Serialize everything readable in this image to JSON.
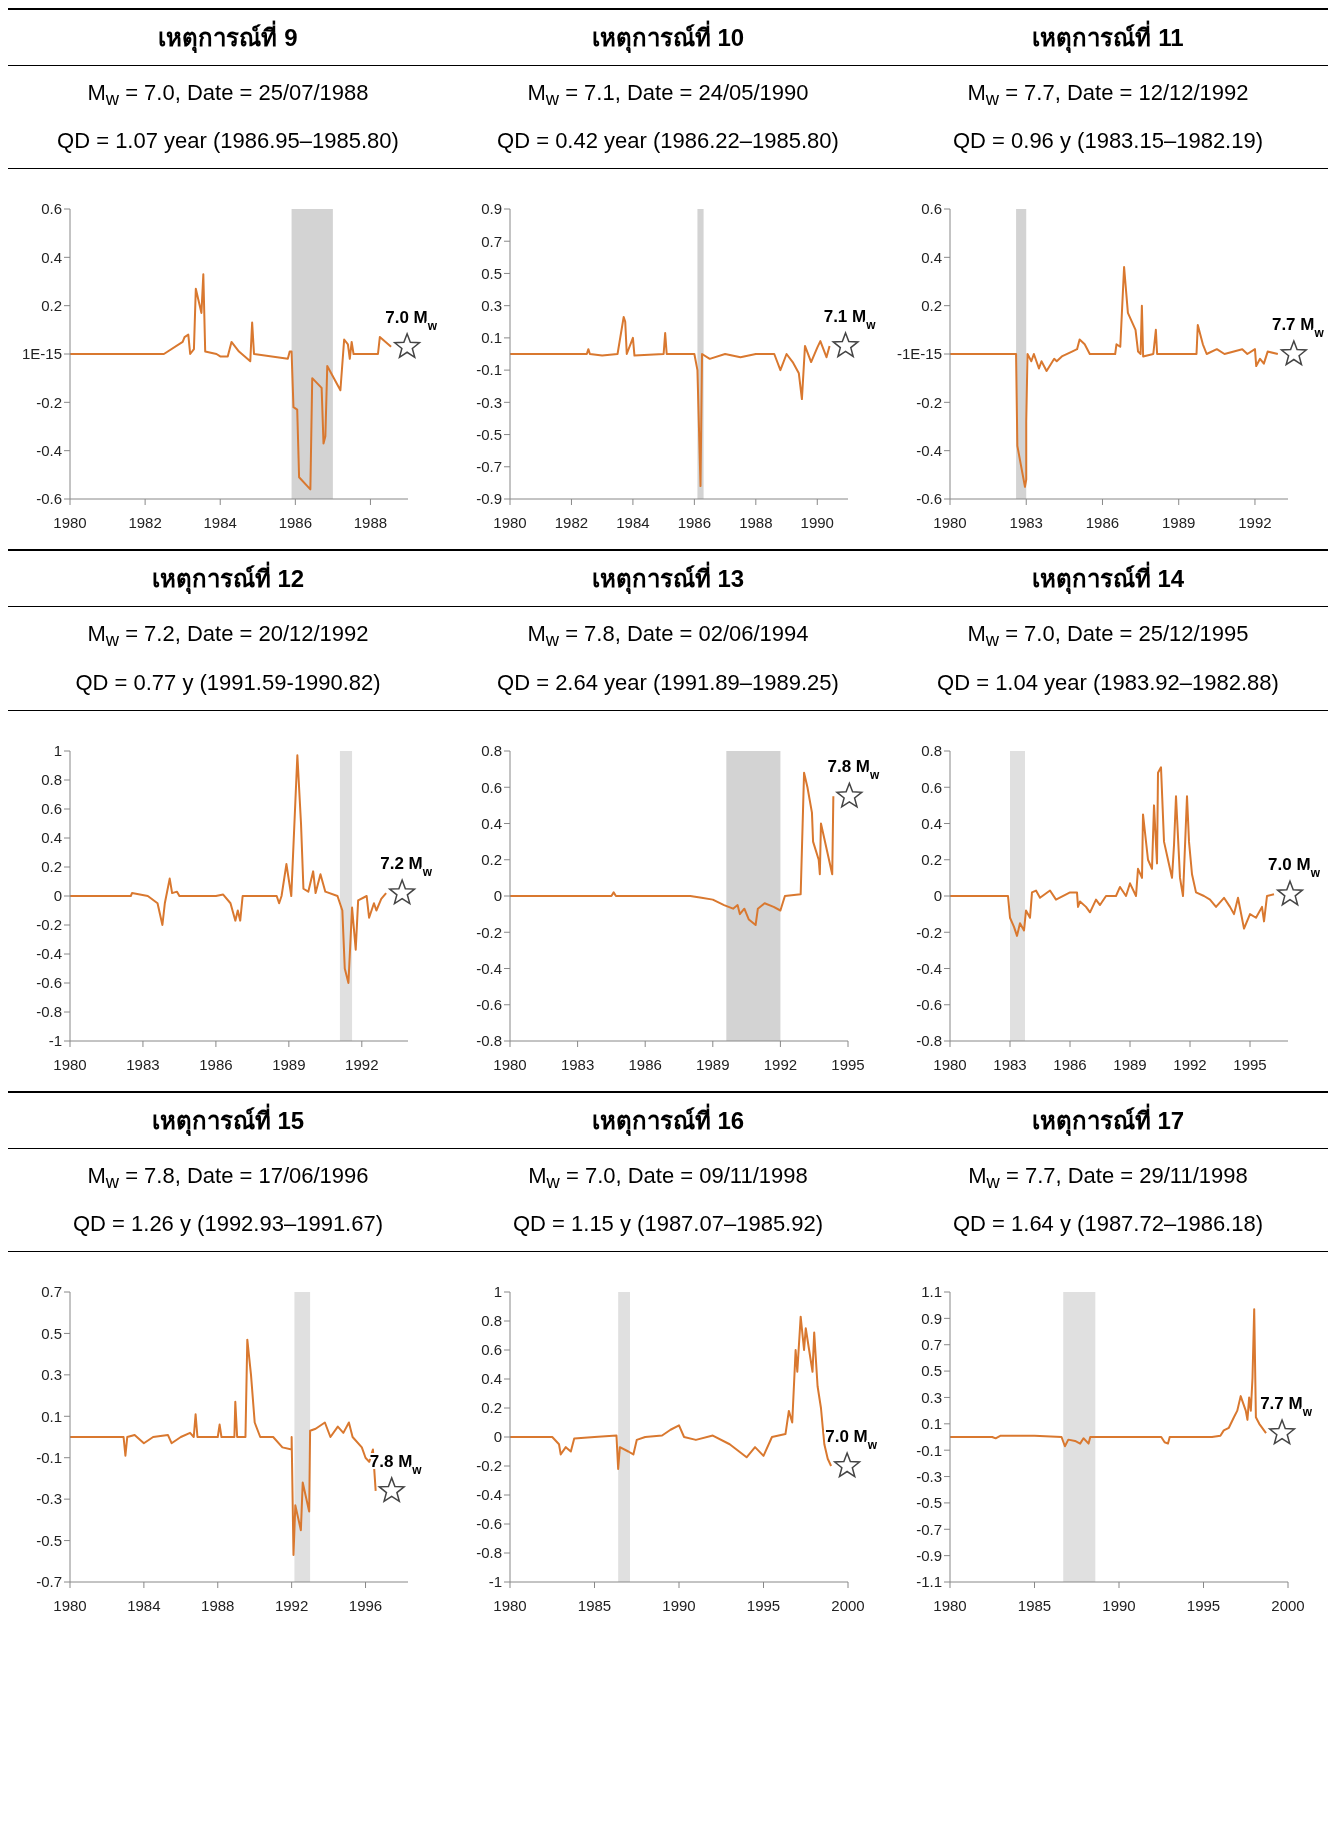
{
  "chart_data": [
    {
      "type": "line",
      "title": "เหตุการณ์ที่ 9",
      "subtitle": "M$_{w}$ = 7.0, Date = 25/07/1988\nQD = 1.07 year (1986.95–1985.80)",
      "x": [
        1980,
        1982.5,
        1983.0,
        1983.05,
        1983.15,
        1983.2,
        1983.3,
        1983.35,
        1983.5,
        1983.55,
        1983.6,
        1983.9,
        1984.0,
        1984.2,
        1984.3,
        1984.5,
        1984.8,
        1984.85,
        1984.9,
        1985.8,
        1985.85,
        1985.9,
        1985.95,
        1986.05,
        1986.1,
        1986.4,
        1986.45,
        1986.7,
        1986.75,
        1986.8,
        1986.85,
        1987.2,
        1987.3,
        1987.4,
        1987.45,
        1987.5,
        1987.55,
        1988.2,
        1988.25,
        1988.55
      ],
      "series": [
        {
          "color": "#d9782f",
          "values": [
            0,
            0,
            0.05,
            0.07,
            0.08,
            0,
            0.02,
            0.27,
            0.17,
            0.33,
            0.01,
            0,
            -0.01,
            -0.01,
            0.05,
            0.01,
            -0.03,
            0.13,
            0,
            -0.02,
            0.01,
            0.01,
            -0.22,
            -0.23,
            -0.51,
            -0.56,
            -0.1,
            -0.14,
            -0.37,
            -0.34,
            -0.05,
            -0.15,
            0.06,
            0.04,
            -0.02,
            0.05,
            0,
            0,
            0.07,
            0.03
          ]
        }
      ],
      "xlim": [
        1980,
        1989
      ],
      "xticks": [
        1980,
        1982,
        1984,
        1986,
        1988
      ],
      "ylim": [
        -0.6,
        0.6
      ],
      "yticks": [
        -0.6,
        -0.4,
        -0.2,
        {
          "value": 0,
          "label": "1E-15"
        },
        0.2,
        0.4,
        0.6
      ],
      "bands": [
        {
          "axis": "x",
          "from": 1985.9,
          "to": 1987.0,
          "color": "#d3d3d3"
        }
      ],
      "annotations": [
        {
          "text": "7.0 M$_{w}$",
          "x": 1988.55,
          "y": 0.03
        }
      ]
    },
    {
      "type": "line",
      "title": "เหตุการณ์ที่ 10",
      "subtitle": "M$_{w}$ = 7.1, Date = 24/05/1990\nQD = 0.42 year (1986.22–1985.80)",
      "x": [
        1980,
        1982.5,
        1982.55,
        1982.6,
        1983,
        1983.5,
        1983.7,
        1983.75,
        1983.8,
        1984,
        1984.05,
        1985,
        1985.05,
        1985.1,
        1986.0,
        1986.1,
        1986.2,
        1986.25,
        1986.5,
        1987,
        1987.5,
        1988,
        1988.6,
        1988.8,
        1989,
        1989.2,
        1989.4,
        1989.5,
        1989.6,
        1989.8,
        1990,
        1990.1,
        1990.3,
        1990.4
      ],
      "series": [
        {
          "color": "#d9782f",
          "values": [
            0,
            0,
            0.03,
            0,
            -0.01,
            0,
            0.23,
            0.2,
            0,
            0.1,
            -0.01,
            0,
            0.13,
            0,
            0,
            -0.1,
            -0.82,
            0,
            -0.03,
            0,
            -0.02,
            0,
            0,
            -0.1,
            0,
            -0.05,
            -0.12,
            -0.28,
            0.05,
            -0.05,
            0.04,
            0.08,
            -0.02,
            0.05
          ]
        }
      ],
      "xlim": [
        1980,
        1991
      ],
      "xticks": [
        1980,
        1982,
        1984,
        1986,
        1988,
        1990
      ],
      "ylim": [
        -0.9,
        0.9
      ],
      "yticks": [
        -0.9,
        -0.7,
        -0.5,
        -0.3,
        -0.1,
        0.1,
        0.3,
        0.5,
        0.7,
        0.9
      ],
      "bands": [
        {
          "axis": "x",
          "from": 1986.1,
          "to": 1986.3,
          "color": "#d3d3d3"
        }
      ],
      "annotations": [
        {
          "text": "7.1 M$_{w}$",
          "x": 1990.4,
          "y": 0.05
        }
      ]
    },
    {
      "type": "line",
      "title": "เหตุการณ์ที่ 11",
      "subtitle": "M$_{w}$ = 7.7, Date = 12/12/1992\nQD = 0.96 y (1983.15–1982.19)",
      "x": [
        1980,
        1982.6,
        1982.65,
        1982.95,
        1983.0,
        1983.0,
        1983.05,
        1983.2,
        1983.3,
        1983.5,
        1983.6,
        1983.8,
        1984.1,
        1984.2,
        1984.4,
        1984.8,
        1985.0,
        1985.1,
        1985.3,
        1985.5,
        1986.5,
        1986.55,
        1986.7,
        1986.85,
        1987.0,
        1987.3,
        1987.4,
        1987.5,
        1987.55,
        1987.6,
        1988.0,
        1988.1,
        1988.15,
        1989.0,
        1989.7,
        1989.75,
        1989.95,
        1990.1,
        1990.5,
        1990.8,
        1991.5,
        1991.7,
        1992.0,
        1992.05,
        1992.2,
        1992.35,
        1992.5,
        1992.9
      ],
      "series": [
        {
          "color": "#d9782f",
          "values": [
            0,
            0,
            -0.38,
            -0.55,
            -0.52,
            -0.28,
            0,
            -0.03,
            0,
            -0.06,
            -0.03,
            -0.07,
            -0.02,
            -0.03,
            -0.01,
            0.01,
            0.02,
            0.06,
            0.04,
            0,
            0,
            0.04,
            0.03,
            0.36,
            0.17,
            0.1,
            0.01,
            0,
            0.2,
            -0.01,
            0,
            0.1,
            0,
            0,
            0,
            0.12,
            0.04,
            0,
            0.02,
            0,
            0.02,
            0,
            0.02,
            -0.05,
            -0.02,
            -0.04,
            0.01,
            0
          ]
        }
      ],
      "xlim": [
        1980,
        1993.3
      ],
      "xticks": [
        1980,
        1983,
        1986,
        1989,
        1992
      ],
      "ylim": [
        -0.6,
        0.6
      ],
      "yticks": [
        -0.6,
        -0.4,
        -0.2,
        {
          "value": 0,
          "label": "-1E-15"
        },
        0.2,
        0.4,
        0.6
      ],
      "bands": [
        {
          "axis": "x",
          "from": 1982.6,
          "to": 1983.0,
          "color": "#d3d3d3"
        }
      ],
      "annotations": [
        {
          "text": "7.7 M$_{w}$",
          "x": 1992.9,
          "y": 0
        }
      ]
    },
    {
      "type": "line",
      "title": "เหตุการณ์ที่ 12",
      "subtitle": "M$_{w}$ = 7.2, Date = 20/12/1992\nQD = 0.77 y (1991.59-1990.82)",
      "x": [
        1980,
        1982.5,
        1982.55,
        1983.2,
        1983.6,
        1983.8,
        1983.9,
        1984.1,
        1984.2,
        1984.4,
        1984.5,
        1986.0,
        1986.3,
        1986.6,
        1986.8,
        1986.9,
        1987.0,
        1987.1,
        1988.5,
        1988.6,
        1988.7,
        1988.9,
        1989.1,
        1989.35,
        1989.5,
        1989.6,
        1989.8,
        1990.0,
        1990.1,
        1990.3,
        1990.5,
        1991.0,
        1991.2,
        1991.3,
        1991.45,
        1991.6,
        1991.75,
        1991.85,
        1992.2,
        1992.3,
        1992.5,
        1992.6,
        1992.8,
        1993.0
      ],
      "series": [
        {
          "color": "#d9782f",
          "values": [
            0,
            0,
            0.02,
            0,
            -0.05,
            -0.2,
            -0.05,
            0.12,
            0.02,
            0.03,
            0,
            0,
            0.01,
            -0.05,
            -0.17,
            -0.1,
            -0.17,
            0,
            0,
            -0.05,
            0,
            0.22,
            0,
            0.97,
            0.5,
            0.05,
            0.03,
            0.17,
            0.02,
            0.15,
            0.03,
            0,
            -0.1,
            -0.5,
            -0.6,
            -0.08,
            -0.37,
            -0.03,
            0,
            -0.15,
            -0.05,
            -0.1,
            -0.02,
            0.02
          ]
        }
      ],
      "xlim": [
        1980,
        1993.9
      ],
      "xticks": [
        1980,
        1983,
        1986,
        1989,
        1992
      ],
      "ylim": [
        -1,
        1
      ],
      "yticks": [
        -1,
        -0.8,
        -0.6,
        -0.4,
        -0.2,
        0,
        0.2,
        0.4,
        0.6,
        0.8,
        1
      ],
      "bands": [
        {
          "axis": "x",
          "from": 1991.1,
          "to": 1991.6,
          "color": "#e0e0e0"
        }
      ],
      "annotations": [
        {
          "text": "7.2 M$_{w}$",
          "x": 1993.0,
          "y": 0.02
        }
      ]
    },
    {
      "type": "line",
      "title": "เหตุการณ์ที่ 13",
      "subtitle": "M$_{w}$ = 7.8, Date = 02/06/1994\nQD = 2.64 year (1991.89–1989.25)",
      "x": [
        1980,
        1984.5,
        1984.6,
        1984.7,
        1988,
        1988.5,
        1989.0,
        1989.5,
        1989.9,
        1990.1,
        1990.2,
        1990.4,
        1990.6,
        1990.9,
        1991.0,
        1991.3,
        1991.7,
        1992.0,
        1992.2,
        1992.9,
        1993.05,
        1993.2,
        1993.4,
        1993.45,
        1993.7,
        1993.75,
        1993.8,
        1994.3,
        1994.35
      ],
      "series": [
        {
          "color": "#d9782f",
          "values": [
            0,
            0,
            0.02,
            0,
            0,
            -0.01,
            -0.02,
            -0.05,
            -0.07,
            -0.05,
            -0.1,
            -0.07,
            -0.13,
            -0.16,
            -0.07,
            -0.04,
            -0.06,
            -0.08,
            0,
            0.01,
            0.68,
            0.6,
            0.46,
            0.3,
            0.2,
            0.12,
            0.4,
            0.12,
            0.55
          ]
        }
      ],
      "xlim": [
        1980,
        1995
      ],
      "xticks": [
        1980,
        1983,
        1986,
        1989,
        1992,
        1995
      ],
      "ylim": [
        -0.8,
        0.8
      ],
      "yticks": [
        -0.8,
        -0.6,
        -0.4,
        -0.2,
        0,
        0.2,
        0.4,
        0.6,
        0.8
      ],
      "bands": [
        {
          "axis": "x",
          "from": 1989.6,
          "to": 1992.0,
          "color": "#d3d3d3"
        }
      ],
      "annotations": [
        {
          "text": "7.8 M$_{w}$",
          "x": 1994.35,
          "y": 0.55
        }
      ]
    },
    {
      "type": "line",
      "title": "เหตุการณ์ที่ 14",
      "subtitle": "M$_{w}$ = 7.0, Date = 25/12/1995\nQD = 1.04 year (1983.92–1982.88)",
      "x": [
        1980,
        1982.9,
        1983.0,
        1983.2,
        1983.35,
        1983.5,
        1983.7,
        1983.8,
        1984.0,
        1984.1,
        1984.3,
        1984.5,
        1985.0,
        1985.3,
        1986.0,
        1986.35,
        1986.4,
        1986.5,
        1986.8,
        1987.0,
        1987.3,
        1987.5,
        1987.8,
        1988.3,
        1988.5,
        1988.8,
        1989.0,
        1989.3,
        1989.4,
        1989.6,
        1989.65,
        1989.9,
        1990.1,
        1990.2,
        1990.35,
        1990.4,
        1990.55,
        1990.7,
        1990.9,
        1991.1,
        1991.2,
        1991.3,
        1991.5,
        1991.65,
        1991.85,
        1991.95,
        1992.1,
        1992.3,
        1992.7,
        1993.0,
        1993.3,
        1993.7,
        1994.0,
        1994.2,
        1994.4,
        1994.7,
        1995.0,
        1995.3,
        1995.6,
        1995.7,
        1995.85,
        1996.2
      ],
      "series": [
        {
          "color": "#d9782f",
          "values": [
            0,
            0,
            -0.12,
            -0.17,
            -0.22,
            -0.15,
            -0.19,
            -0.08,
            -0.12,
            0.02,
            0.03,
            -0.01,
            0.03,
            -0.02,
            0.02,
            0.02,
            -0.06,
            -0.03,
            -0.06,
            -0.09,
            -0.02,
            -0.05,
            0,
            0,
            0.05,
            0,
            0.07,
            0,
            0.15,
            0.1,
            0.45,
            0.2,
            0.15,
            0.5,
            0.18,
            0.68,
            0.71,
            0.3,
            0.2,
            0.1,
            0.28,
            0.55,
            0.1,
            0,
            0.55,
            0.3,
            0.12,
            0.02,
            0,
            -0.02,
            -0.06,
            -0.01,
            -0.06,
            -0.1,
            -0.01,
            -0.18,
            -0.1,
            -0.12,
            -0.06,
            -0.14,
            0,
            0.01
          ]
        }
      ],
      "xlim": [
        1980,
        1996.9
      ],
      "xticks": [
        1980,
        1983,
        1986,
        1989,
        1992,
        1995
      ],
      "ylim": [
        -0.8,
        0.8
      ],
      "yticks": [
        -0.8,
        -0.6,
        -0.4,
        -0.2,
        0,
        0.2,
        0.4,
        0.6,
        0.8
      ],
      "bands": [
        {
          "axis": "x",
          "from": 1983.0,
          "to": 1983.75,
          "color": "#e0e0e0"
        }
      ],
      "annotations": [
        {
          "text": "7.0 M$_{w}$",
          "x": 1996.2,
          "y": 0.01
        }
      ]
    },
    {
      "type": "line",
      "title": "เหตุการณ์ที่ 15",
      "subtitle": "M$_{w}$ = 7.8, Date = 17/06/1996\nQD = 1.26 y (1992.93–1991.67)",
      "x": [
        1980,
        1982.9,
        1983.0,
        1983.1,
        1983.5,
        1984.0,
        1984.5,
        1985.3,
        1985.5,
        1986.0,
        1986.5,
        1986.7,
        1986.8,
        1986.9,
        1988.0,
        1988.1,
        1988.2,
        1988.9,
        1988.95,
        1989.05,
        1989.5,
        1989.6,
        1989.8,
        1990.0,
        1990.3,
        1991.0,
        1991.5,
        1992.0,
        1992.0,
        1992.1,
        1992.2,
        1992.5,
        1992.6,
        1992.95,
        1993.0,
        1993.3,
        1993.8,
        1994.1,
        1994.5,
        1994.8,
        1995.1,
        1995.3,
        1995.8,
        1996.0,
        1996.2,
        1996.4,
        1996.55
      ],
      "series": [
        {
          "color": "#d9782f",
          "values": [
            0,
            0,
            -0.09,
            0,
            0.01,
            -0.03,
            0,
            0.01,
            -0.03,
            0,
            0.02,
            0,
            0.11,
            0,
            0,
            0.06,
            0,
            0,
            0.17,
            0,
            0,
            0.47,
            0.3,
            0.07,
            0,
            0,
            -0.05,
            -0.06,
            0,
            -0.57,
            -0.33,
            -0.45,
            -0.22,
            -0.36,
            0.03,
            0.04,
            0.07,
            0,
            0.05,
            0.02,
            0.07,
            0,
            -0.05,
            -0.1,
            -0.12,
            -0.06,
            -0.26
          ]
        }
      ],
      "xlim": [
        1980,
        1998.3
      ],
      "xticks": [
        1980,
        1984,
        1988,
        1992,
        1996
      ],
      "ylim": [
        -0.7,
        0.7
      ],
      "yticks": [
        -0.7,
        -0.5,
        -0.3,
        -0.1,
        0.1,
        0.3,
        0.5,
        0.7
      ],
      "bands": [
        {
          "axis": "x",
          "from": 1992.15,
          "to": 1993.0,
          "color": "#e0e0e0"
        }
      ],
      "annotations": [
        {
          "text": "7.8 M$_{w}$",
          "x": 1996.55,
          "y": -0.26
        }
      ]
    },
    {
      "type": "line",
      "title": "เหตุการณ์ที่ 16",
      "subtitle": "M$_{w}$ = 7.0, Date = 09/11/1998\nQD = 1.15 y (1987.07–1985.92)",
      "x": [
        1980,
        1982.5,
        1982.9,
        1983.0,
        1983.3,
        1983.6,
        1983.8,
        1985.0,
        1986.3,
        1986.4,
        1986.5,
        1987.0,
        1987.3,
        1987.5,
        1988.0,
        1989.0,
        1989.5,
        1990.0,
        1990.3,
        1991.0,
        1992.0,
        1993.0,
        1994.0,
        1994.5,
        1995.0,
        1995.5,
        1996.3,
        1996.5,
        1996.7,
        1996.9,
        1997.0,
        1997.2,
        1997.4,
        1997.5,
        1997.7,
        1997.9,
        1998.0,
        1998.2,
        1998.4,
        1998.6,
        1998.8,
        1999.0
      ],
      "series": [
        {
          "color": "#d9782f",
          "values": [
            0,
            0,
            -0.05,
            -0.12,
            -0.07,
            -0.1,
            -0.01,
            0,
            0.01,
            -0.22,
            -0.07,
            -0.1,
            -0.12,
            -0.02,
            0,
            0.01,
            0.05,
            0.08,
            0,
            -0.02,
            0.01,
            -0.05,
            -0.14,
            -0.07,
            -0.13,
            0,
            0.02,
            0.18,
            0.1,
            0.6,
            0.45,
            0.83,
            0.6,
            0.75,
            0.6,
            0.45,
            0.72,
            0.35,
            0.2,
            -0.05,
            -0.15,
            -0.2
          ]
        }
      ],
      "xlim": [
        1980,
        2000
      ],
      "xticks": [
        1980,
        1985,
        1990,
        1995,
        2000
      ],
      "ylim": [
        -1,
        1
      ],
      "yticks": [
        -1,
        -0.8,
        -0.6,
        -0.4,
        -0.2,
        0,
        0.2,
        0.4,
        0.6,
        0.8,
        1
      ],
      "bands": [
        {
          "axis": "x",
          "from": 1986.4,
          "to": 1987.1,
          "color": "#e0e0e0"
        }
      ],
      "annotations": [
        {
          "text": "7.0 M$_{w}$",
          "x": 1999.0,
          "y": -0.2
        }
      ]
    },
    {
      "type": "line",
      "title": "เหตุการณ์ที่ 17",
      "subtitle": "M$_{w}$ = 7.7, Date = 29/11/1998\nQD = 1.64 y (1987.72–1986.18)",
      "x": [
        1980,
        1982.5,
        1982.7,
        1983.0,
        1985.0,
        1986.6,
        1986.8,
        1987.0,
        1987.4,
        1987.7,
        1987.9,
        1988.2,
        1988.3,
        1990,
        1992.5,
        1992.7,
        1992.9,
        1993.0,
        1995.5,
        1996.0,
        1996.2,
        1996.5,
        1996.8,
        1997.0,
        1997.2,
        1997.5,
        1997.6,
        1997.7,
        1997.8,
        1997.9,
        1998.0,
        1998.1,
        1998.3,
        1998.7
      ],
      "series": [
        {
          "color": "#d9782f",
          "values": [
            0,
            0,
            -0.01,
            0.01,
            0.01,
            0,
            -0.07,
            -0.02,
            -0.03,
            -0.05,
            -0.01,
            -0.05,
            0,
            0,
            0,
            -0.04,
            -0.05,
            0,
            0,
            0.01,
            0.05,
            0.07,
            0.15,
            0.2,
            0.31,
            0.2,
            0.13,
            0.3,
            0.2,
            0.45,
            0.97,
            0.15,
            0.1,
            0.03
          ]
        }
      ],
      "xlim": [
        1980,
        2000
      ],
      "xticks": [
        1980,
        1985,
        1990,
        1995,
        2000
      ],
      "ylim": [
        -1.1,
        1.1
      ],
      "yticks": [
        -1.1,
        -0.9,
        -0.7,
        -0.5,
        -0.3,
        -0.1,
        0.1,
        0.3,
        0.5,
        0.7,
        0.9,
        1.1
      ],
      "bands": [
        {
          "axis": "x",
          "from": 1986.7,
          "to": 1988.6,
          "color": "#e0e0e0"
        }
      ],
      "annotations": [
        {
          "text": "7.7 M$_{w}$",
          "x": 1998.7,
          "y": 0.03
        }
      ]
    }
  ]
}
